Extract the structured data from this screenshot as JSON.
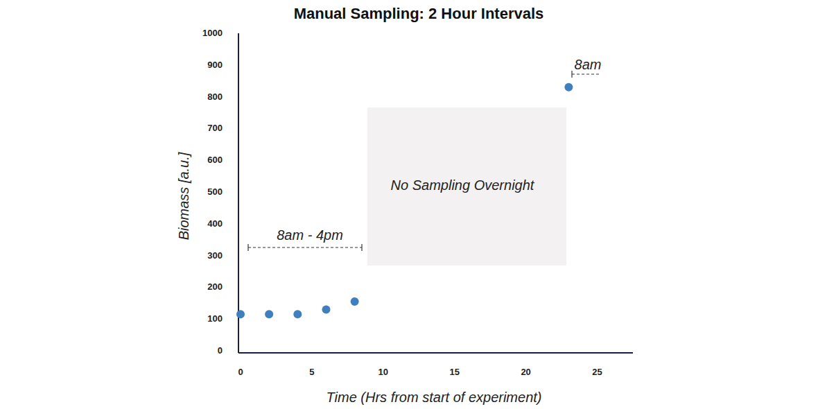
{
  "chart_data": {
    "type": "scatter",
    "title": "Manual Sampling: 2 Hour Intervals",
    "x_label": "Time (Hrs from start of experiment)",
    "y_label": "Biomass [a.u.]",
    "x": [
      0,
      2,
      4,
      6,
      8,
      23
    ],
    "values": [
      115,
      115,
      115,
      130,
      155,
      830
    ],
    "color": "#3f7fbf",
    "marker": "circle",
    "xlim": [
      0,
      27.5
    ],
    "ylim": [
      0,
      1000
    ],
    "xticks": [
      0,
      5,
      10,
      15,
      20,
      25
    ],
    "yticks": [
      0,
      100,
      200,
      300,
      400,
      500,
      600,
      700,
      800,
      900,
      1000
    ],
    "grid": false,
    "annotations": [
      "8am - 4pm",
      "No Sampling Overnight",
      "8am"
    ]
  }
}
